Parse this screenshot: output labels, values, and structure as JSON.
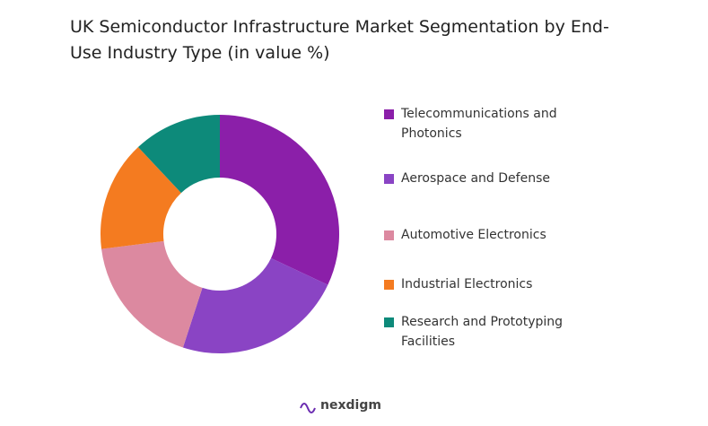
{
  "chart_data": {
    "type": "donut",
    "title": "UK Semiconductor Infrastructure Market Segmentation by End-Use Industry Type (in value %)",
    "categories": [
      "Telecommunications and Photonics",
      "Aerospace and Defense",
      "Automotive Electronics",
      "Industrial Electronics",
      "Research and Prototyping Facilities"
    ],
    "values": [
      32,
      23,
      18,
      15,
      12
    ],
    "colors": [
      "#8b1fa9",
      "#8a44c4",
      "#dc89a0",
      "#f47b20",
      "#0d8a7a"
    ]
  },
  "brand": "nexdigm"
}
